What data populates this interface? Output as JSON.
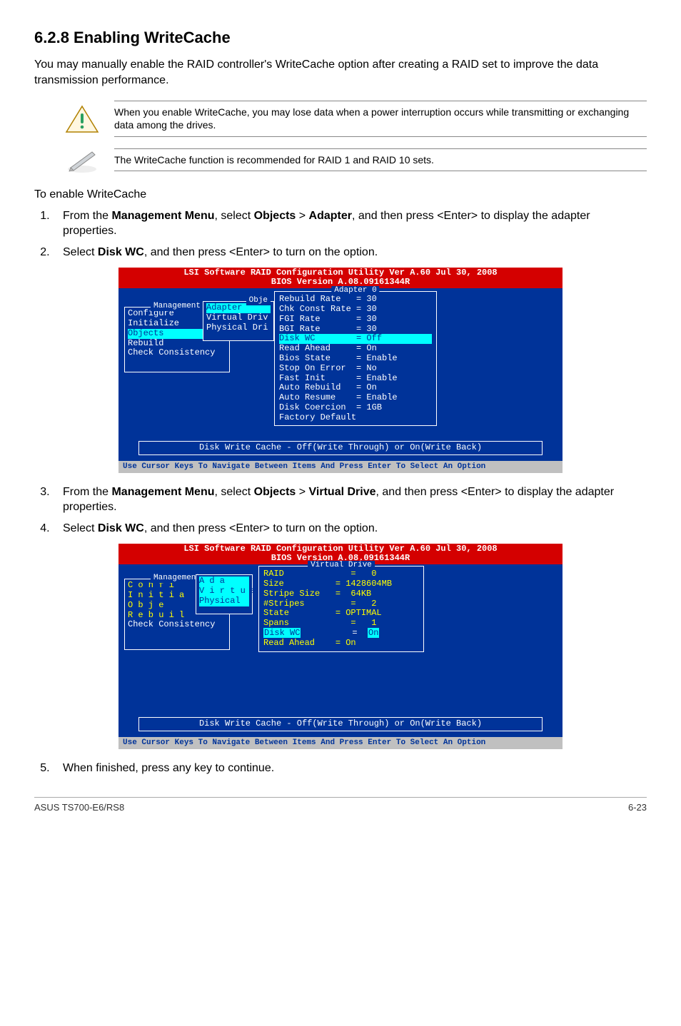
{
  "heading": "6.2.8    Enabling WriteCache",
  "intro": "You may manually enable the RAID controller's WriteCache option after creating a RAID set to improve the data transmission performance.",
  "warn_note": "When you enable WriteCache, you may lose data when a power interruption occurs while transmitting or exchanging data among the drives.",
  "info_note": "The WriteCache function is recommended for RAID 1 and RAID 10 sets.",
  "sub_heading": "To enable WriteCache",
  "step1_pre": "From the ",
  "step1_b1": "Management Menu",
  "step1_mid1": ", select ",
  "step1_b2": "Objects",
  "step1_mid2": " > ",
  "step1_b3": "Adapter",
  "step1_post": ", and then press <Enter> to display the adapter properties.",
  "step2_pre": "Select ",
  "step2_b1": "Disk WC",
  "step2_post": ", and then press <Enter> to turn on the option.",
  "step3_pre": "From the ",
  "step3_b1": "Management Menu",
  "step3_mid1": ", select ",
  "step3_b2": "Objects",
  "step3_mid2": " > ",
  "step3_b3": "Virtual Drive",
  "step3_post": ", and then press <Enter> to display the adapter properties.",
  "step4_pre": "Select ",
  "step4_b1": "Disk WC",
  "step4_post": ", and then press <Enter> to turn on the option.",
  "step5": "When finished, press any key to continue.",
  "bios1": {
    "header1": "LSI Software RAID Configuration Utility Ver A.60 Jul 30, 2008",
    "header2": "BIOS Version   A.08.09161344R",
    "adapter_title": "Adapter 0",
    "mgmt_title": "Management",
    "mgmt_items": [
      "Configure",
      "Initialize",
      "Objects",
      "Rebuild",
      "Check Consistency"
    ],
    "obj_title": "Obje",
    "obj_items": [
      "Adapter",
      "Virtual Driv",
      "Physical Dri"
    ],
    "adapter_rows": [
      "Rebuild Rate   = 30",
      "Chk Const Rate = 30",
      "FGI Rate       = 30",
      "BGI Rate       = 30",
      "Disk WC        = Off",
      "Read Ahead     = On",
      "Bios State     = Enable",
      "Stop On Error  = No",
      "Fast Init      = Enable",
      "Auto Rebuild   = On",
      "Auto Resume    = Enable",
      "Disk Coercion  = 1GB",
      "Factory Default"
    ],
    "disk_wc_index": 4,
    "footer": "Disk Write Cache - Off(Write Through) or On(Write Back)",
    "greybar": " Use Cursor Keys To Navigate Between Items And Press Enter To Select An Option"
  },
  "bios2": {
    "header1": "LSI Software RAID Configuration Utility Ver A.60 Jul 30, 2008",
    "header2": "BIOS Version   A.08.09161344R",
    "vd_title": "Virtual Drive",
    "mgmt_title": "Management",
    "mgmt_l1": "C o n f i",
    "mgmt_l2": "I n i t i a",
    "mgmt_l3": "O b j e",
    "mgmt_l4": "R e b u i l",
    "mgmt_l5": "Check Consistency",
    "obj_items": [
      "A d a",
      "V i r t u a",
      "Physical"
    ],
    "vd_rows": [
      "RAID             =   0",
      "Size          = 1428604MB",
      "Stripe Size   =  64KB",
      "#Stripes         =   2",
      "State         = OPTIMAL",
      "Spans            =   1",
      "Disk WC          =  On",
      "Read Ahead    = On"
    ],
    "disk_wc_index": 6,
    "footer": "Disk Write Cache - Off(Write Through) or On(Write Back)",
    "greybar": " Use Cursor Keys To Navigate Between Items And Press Enter To Select An Option"
  },
  "page_footer_left": "ASUS TS700-E6/RS8",
  "page_footer_right": "6-23"
}
